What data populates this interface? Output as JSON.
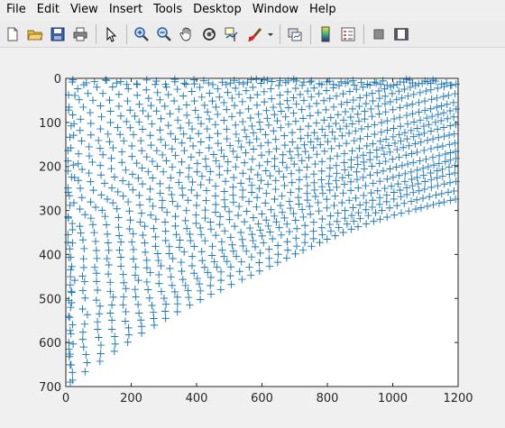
{
  "menu": {
    "items": [
      {
        "label": "File",
        "name": "menu-file"
      },
      {
        "label": "Edit",
        "name": "menu-edit"
      },
      {
        "label": "View",
        "name": "menu-view"
      },
      {
        "label": "Insert",
        "name": "menu-insert"
      },
      {
        "label": "Tools",
        "name": "menu-tools"
      },
      {
        "label": "Desktop",
        "name": "menu-desktop"
      },
      {
        "label": "Window",
        "name": "menu-window"
      },
      {
        "label": "Help",
        "name": "menu-help"
      }
    ]
  },
  "toolbar": {
    "icons": [
      "new-figure-icon",
      "open-file-icon",
      "save-icon",
      "print-icon",
      "pointer-icon",
      "zoom-in-icon",
      "zoom-out-icon",
      "pan-hand-icon",
      "rotate-3d-icon",
      "data-cursor-icon",
      "brush-icon",
      "link-plot-icon",
      "colorbar-icon",
      "legend-icon",
      "hide-plot-tools-icon",
      "show-plot-tools-icon"
    ]
  },
  "colors": {
    "marker": "#1f77b4",
    "axes_bg": "#ffffff",
    "figure_bg": "#f0f0f0"
  },
  "chart_data": {
    "type": "scatter",
    "marker": "+",
    "xlim": [
      0,
      1200
    ],
    "ylim": [
      0,
      700
    ],
    "y_reversed": true,
    "xticks": [
      0,
      200,
      400,
      600,
      800,
      1000,
      1200
    ],
    "yticks": [
      0,
      100,
      200,
      300,
      400,
      500,
      600,
      700
    ],
    "xtick_labels": [
      "0",
      "200",
      "400",
      "600",
      "800",
      "1000",
      "1200"
    ],
    "ytick_labels": [
      "0",
      "100",
      "200",
      "300",
      "400",
      "500",
      "600",
      "700"
    ],
    "grid": false,
    "description_pattern": "dense diagonal curved families of + markers, denser toward upper-right"
  }
}
